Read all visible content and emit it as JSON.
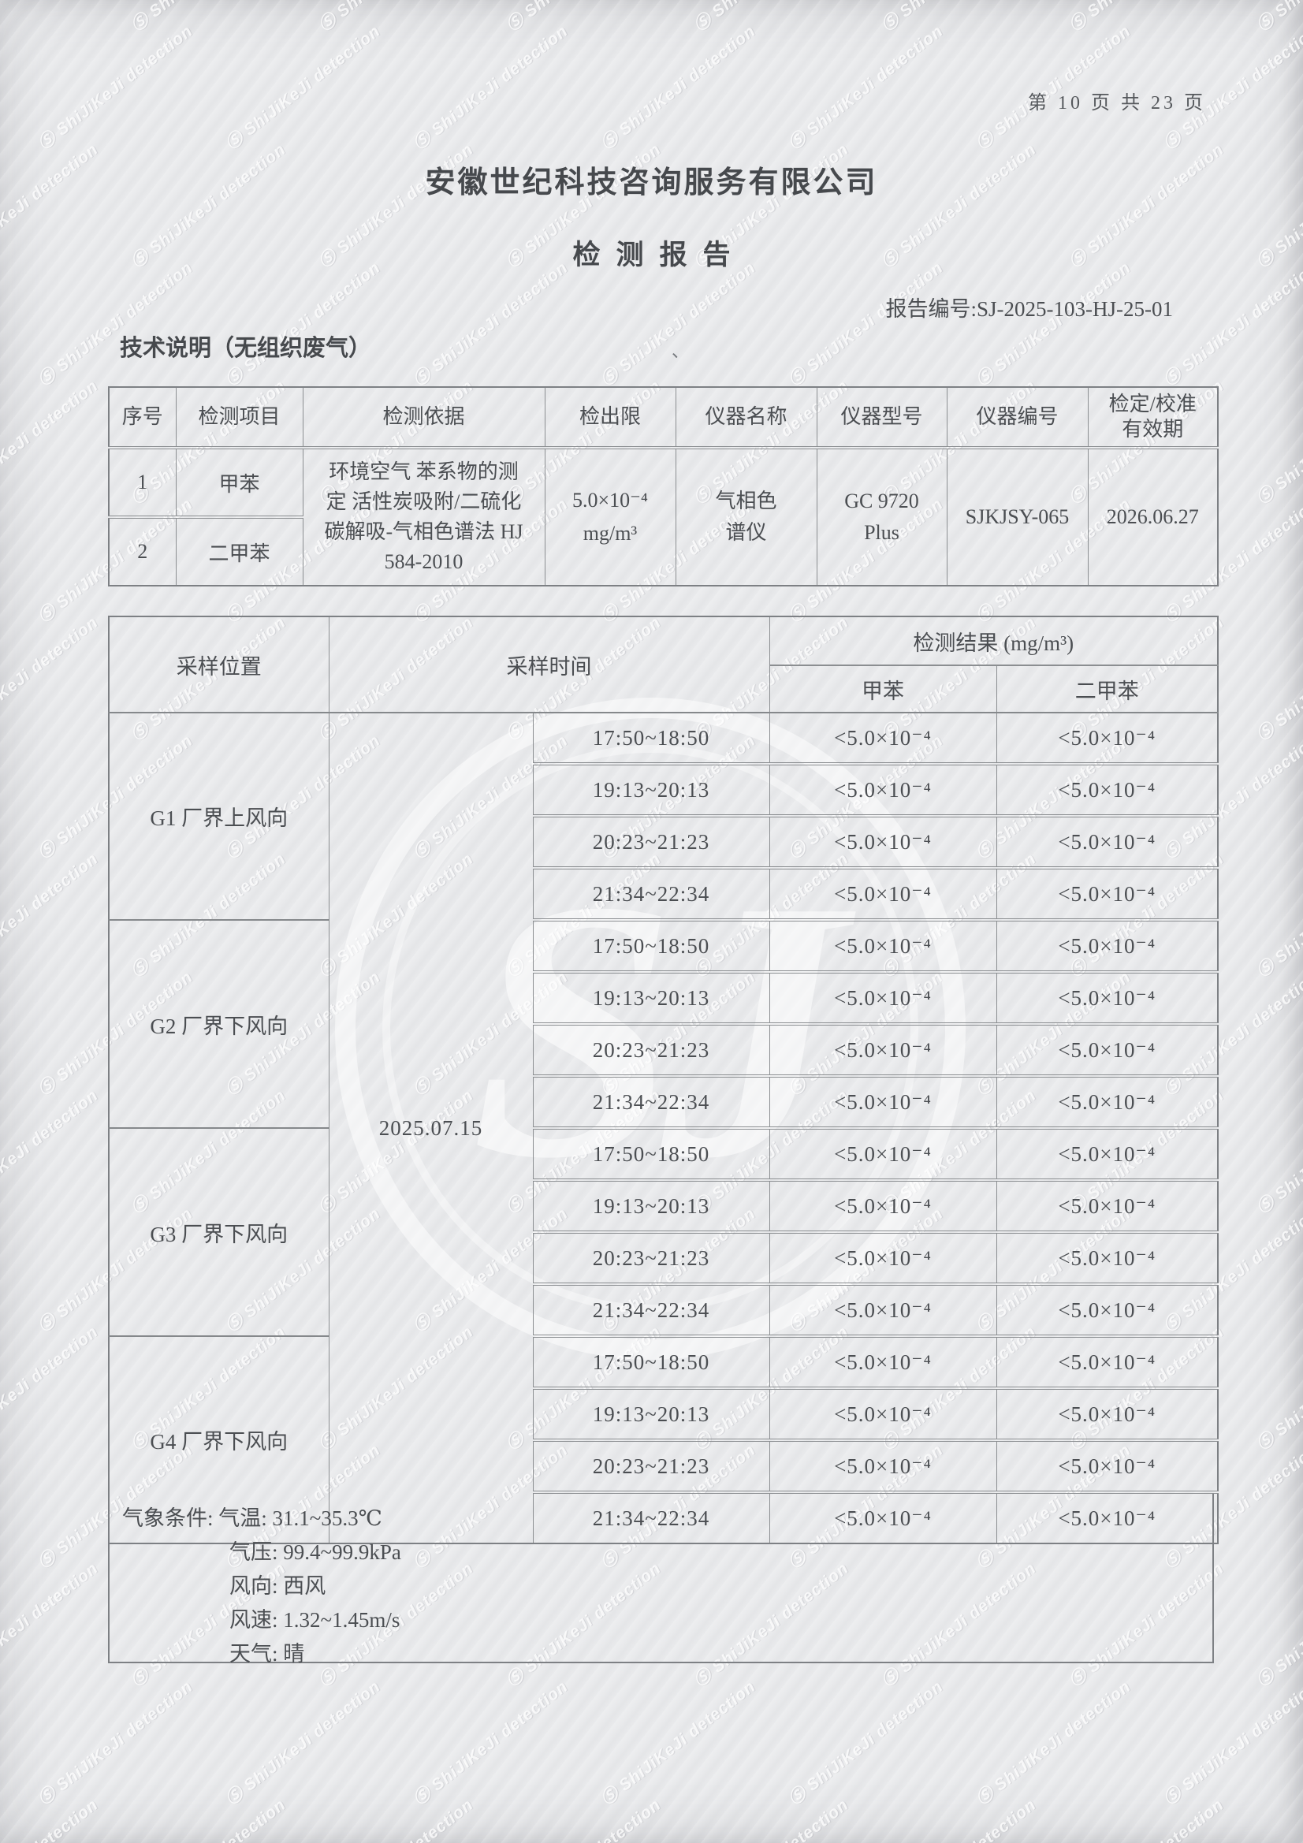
{
  "page": {
    "page_number": "第 10 页 共 23 页",
    "stray_mark": "、"
  },
  "header": {
    "company": "安徽世纪科技咨询服务有限公司",
    "report_title": "检测报告",
    "report_no_label": "报告编号:",
    "report_no": "SJ-2025-103-HJ-25-01",
    "section_title": "技术说明（无组织废气）"
  },
  "instrument_table": {
    "headers": {
      "no": "序号",
      "item": "检测项目",
      "method": "检测依据",
      "limit": "检出限",
      "instrument_name": "仪器名称",
      "instrument_model": "仪器型号",
      "instrument_no": "仪器编号",
      "validity": "检定/校准有效期"
    },
    "rows": [
      {
        "no": "1",
        "item": "甲苯"
      },
      {
        "no": "2",
        "item": "二甲苯"
      }
    ],
    "method": "环境空气 苯系物的测定 活性炭吸附/二硫化碳解吸-气相色谱法 HJ 584-2010",
    "detection_limit_value": "5.0×10⁻⁴",
    "detection_limit_unit": "mg/m³",
    "instrument_name": "气相色谱仪",
    "instrument_model": "GC 9720 Plus",
    "instrument_no": "SJKJSY-065",
    "calibration_validity": "2026.06.27"
  },
  "results_table": {
    "headers": {
      "location": "采样位置",
      "time": "采样时间",
      "result": "检测结果 (mg/m³)",
      "toluene": "甲苯",
      "xylene": "二甲苯"
    },
    "sample_date": "2025.07.15",
    "groups": [
      {
        "location": "G1 厂界上风向"
      },
      {
        "location": "G2 厂界下风向"
      },
      {
        "location": "G3 厂界下风向"
      },
      {
        "location": "G4 厂界下风向"
      }
    ],
    "rows": [
      {
        "time": "17:50~18:50",
        "toluene": "<5.0×10⁻⁴",
        "xylene": "<5.0×10⁻⁴"
      },
      {
        "time": "19:13~20:13",
        "toluene": "<5.0×10⁻⁴",
        "xylene": "<5.0×10⁻⁴"
      },
      {
        "time": "20:23~21:23",
        "toluene": "<5.0×10⁻⁴",
        "xylene": "<5.0×10⁻⁴"
      },
      {
        "time": "21:34~22:34",
        "toluene": "<5.0×10⁻⁴",
        "xylene": "<5.0×10⁻⁴"
      },
      {
        "time": "17:50~18:50",
        "toluene": "<5.0×10⁻⁴",
        "xylene": "<5.0×10⁻⁴"
      },
      {
        "time": "19:13~20:13",
        "toluene": "<5.0×10⁻⁴",
        "xylene": "<5.0×10⁻⁴"
      },
      {
        "time": "20:23~21:23",
        "toluene": "<5.0×10⁻⁴",
        "xylene": "<5.0×10⁻⁴"
      },
      {
        "time": "21:34~22:34",
        "toluene": "<5.0×10⁻⁴",
        "xylene": "<5.0×10⁻⁴"
      },
      {
        "time": "17:50~18:50",
        "toluene": "<5.0×10⁻⁴",
        "xylene": "<5.0×10⁻⁴"
      },
      {
        "time": "19:13~20:13",
        "toluene": "<5.0×10⁻⁴",
        "xylene": "<5.0×10⁻⁴"
      },
      {
        "time": "20:23~21:23",
        "toluene": "<5.0×10⁻⁴",
        "xylene": "<5.0×10⁻⁴"
      },
      {
        "time": "21:34~22:34",
        "toluene": "<5.0×10⁻⁴",
        "xylene": "<5.0×10⁻⁴"
      },
      {
        "time": "17:50~18:50",
        "toluene": "<5.0×10⁻⁴",
        "xylene": "<5.0×10⁻⁴"
      },
      {
        "time": "19:13~20:13",
        "toluene": "<5.0×10⁻⁴",
        "xylene": "<5.0×10⁻⁴"
      },
      {
        "time": "20:23~21:23",
        "toluene": "<5.0×10⁻⁴",
        "xylene": "<5.0×10⁻⁴"
      },
      {
        "time": "21:34~22:34",
        "toluene": "<5.0×10⁻⁴",
        "xylene": "<5.0×10⁻⁴"
      }
    ]
  },
  "weather": {
    "label": "气象条件: ",
    "lines": {
      "temperature": "气温: 31.1~35.3℃",
      "pressure": "气压: 99.4~99.9kPa",
      "wind_direction": "风向: 西风",
      "wind_speed": "风速: 1.32~1.45m/s",
      "sky": "天气: 晴"
    }
  },
  "watermark": {
    "logo": "Ⓢ",
    "text": "ShiJiKeJi detection",
    "center_monogram": "SJ"
  }
}
